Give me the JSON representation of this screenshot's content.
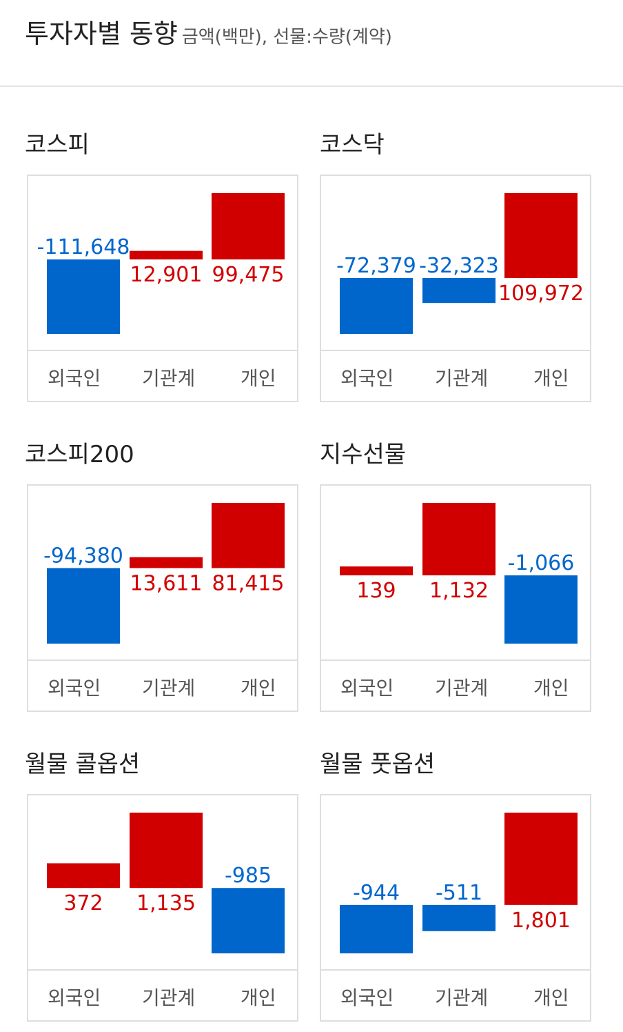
{
  "header": {
    "title": "투자자별 동향",
    "subtitle": "금액(백만), 선물:수량(계약)"
  },
  "colors": {
    "positive": "#d10000",
    "negative": "#0066cc"
  },
  "chart_data": [
    {
      "type": "bar",
      "title": "코스피",
      "categories": [
        "외국인",
        "기관계",
        "개인"
      ],
      "values": [
        -111648,
        12901,
        99475
      ],
      "labels": [
        "-111,648",
        "12,901",
        "99,475"
      ]
    },
    {
      "type": "bar",
      "title": "코스닥",
      "categories": [
        "외국인",
        "기관계",
        "개인"
      ],
      "values": [
        -72379,
        -32323,
        109972
      ],
      "labels": [
        "-72,379",
        "-32,323",
        "109,972"
      ]
    },
    {
      "type": "bar",
      "title": "코스피200",
      "categories": [
        "외국인",
        "기관계",
        "개인"
      ],
      "values": [
        -94380,
        13611,
        81415
      ],
      "labels": [
        "-94,380",
        "13,611",
        "81,415"
      ]
    },
    {
      "type": "bar",
      "title": "지수선물",
      "categories": [
        "외국인",
        "기관계",
        "개인"
      ],
      "values": [
        139,
        1132,
        -1066
      ],
      "labels": [
        "139",
        "1,132",
        "-1,066"
      ]
    },
    {
      "type": "bar",
      "title": "월물 콜옵션",
      "categories": [
        "외국인",
        "기관계",
        "개인"
      ],
      "values": [
        372,
        1135,
        -985
      ],
      "labels": [
        "372",
        "1,135",
        "-985"
      ]
    },
    {
      "type": "bar",
      "title": "월물 풋옵션",
      "categories": [
        "외국인",
        "기관계",
        "개인"
      ],
      "values": [
        -944,
        -511,
        1801
      ],
      "labels": [
        "-944",
        "-511",
        "1,801"
      ]
    }
  ]
}
